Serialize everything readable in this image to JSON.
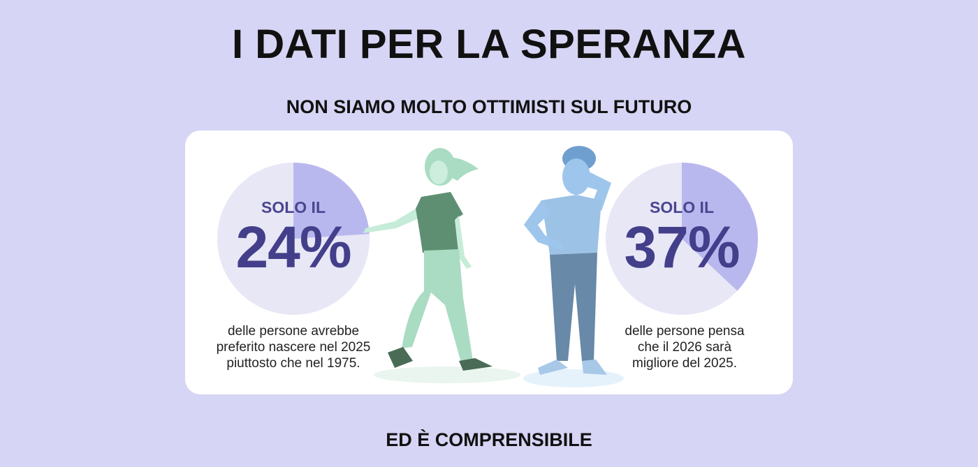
{
  "header": {
    "title": "I DATI PER LA SPERANZA"
  },
  "subtitle": "NON SIAMO MOLTO OTTIMISTI SUL FUTURO",
  "footer": "ED È COMPRENSIBILE",
  "colors": {
    "background": "#d6d5f5",
    "card": "#ffffff",
    "pie_base": "#e8e7f6",
    "pie_highlight": "#b9b8ee",
    "number": "#443f8a"
  },
  "chart_data": [
    {
      "type": "pie",
      "prefix": "SOLO IL",
      "label": "24%",
      "values": [
        24,
        76
      ],
      "caption": [
        "delle persone avrebbe",
        "preferito nascere nel 2025",
        "piuttosto che nel 1975."
      ]
    },
    {
      "type": "pie",
      "prefix": "SOLO IL",
      "label": "37%",
      "values": [
        37,
        63
      ],
      "caption": [
        "delle persone pensa",
        "che il 2026 sarà",
        "migliore del 2025."
      ]
    }
  ],
  "illustrations": [
    "woman-walking-illustration",
    "man-thinking-illustration"
  ]
}
